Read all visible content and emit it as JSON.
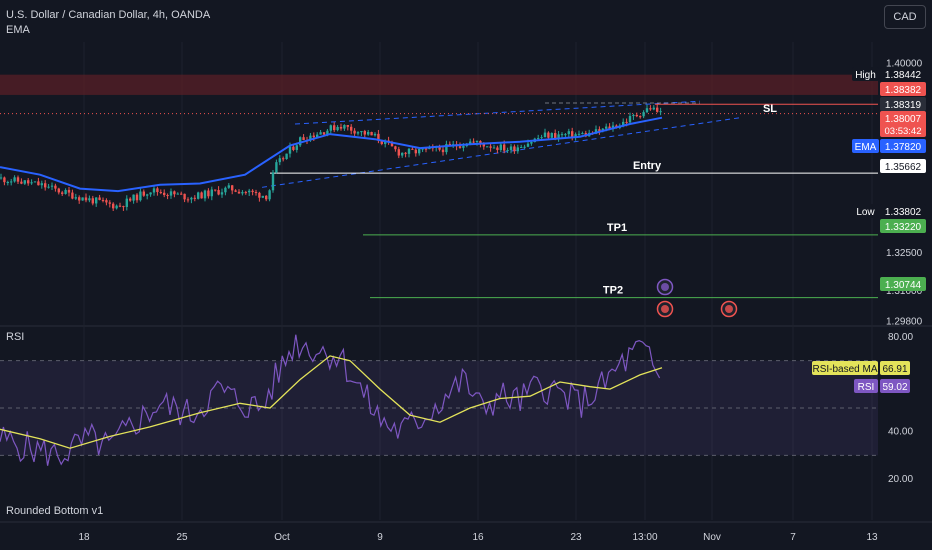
{
  "header": {
    "symbol_title": "U.S. Dollar / Canadian Dollar, 4h, OANDA",
    "indicator": "EMA",
    "currency_button": "CAD"
  },
  "colors": {
    "bg": "#131722",
    "grid": "#1e222d",
    "text": "#d1d4dc",
    "up": "#26a69a",
    "down": "#ef5350",
    "ema": "#2962ff",
    "rsi": "#7e57c2",
    "rsi_ma": "#e3e35a",
    "level_white": "#ffffff",
    "level_green": "#4caf50",
    "zone": "#5d1f26",
    "trend": "#2962ff"
  },
  "chart_data": [
    {
      "type": "candlestick",
      "price_range": [
        1.2895,
        1.4005
      ],
      "price_ticks": [
        "1.40000",
        "1.32500",
        "1.31000",
        "1.29800"
      ],
      "x_ticks": [
        "18",
        "25",
        "Oct",
        "9",
        "16",
        "23",
        "13:00",
        "Nov",
        "7",
        "13"
      ],
      "ohlc_summary": {
        "start": 1.3545,
        "pre_oct_low": 1.3435,
        "oct_gap_up": 1.3585,
        "early_oct_high": 1.3765,
        "mid_oct_low": 1.364,
        "last_high": 1.3832,
        "last": 1.3801
      },
      "ema_anchor_values": [
        1.359,
        1.356,
        1.3505,
        1.3495,
        1.352,
        1.3525,
        1.356,
        1.3675,
        1.372,
        1.37,
        1.3665,
        1.368,
        1.369,
        1.371,
        1.376,
        1.3785
      ],
      "resistance_zone": [
        1.3875,
        1.3955
      ],
      "levels": [
        {
          "name": "SL",
          "price": 1.38382
        },
        {
          "name": "Entry",
          "price": 1.35662
        },
        {
          "name": "TP1",
          "price": 1.3322
        },
        {
          "name": "TP2",
          "price": 1.30744
        }
      ],
      "price_labels": [
        {
          "label": "High",
          "value": "1.38442"
        },
        {
          "label": "",
          "value": "1.38382"
        },
        {
          "label": "",
          "value": "1.38319"
        },
        {
          "label": "",
          "value": "1.38007",
          "sub": "03:53:42"
        },
        {
          "label": "EMA",
          "value": "1.37820"
        },
        {
          "label": "",
          "value": "1.35662"
        },
        {
          "label": "Low",
          "value": "1.33802"
        },
        {
          "label": "",
          "value": "1.33220"
        },
        {
          "label": "",
          "value": "1.30744"
        }
      ]
    },
    {
      "type": "line",
      "name": "RSI",
      "y_ticks": [
        "80.00",
        "40.00",
        "20.00"
      ],
      "band": [
        30,
        70
      ],
      "mid": 50,
      "rsi_last": 59.02,
      "rsi_ma_last": 66.91,
      "legend": [
        {
          "label": "RSI-based MA",
          "value": "66.91"
        },
        {
          "label": "RSI",
          "value": "59.02"
        }
      ]
    }
  ],
  "rsi_title": "RSI",
  "footer_indicator": "Rounded Bottom v1"
}
